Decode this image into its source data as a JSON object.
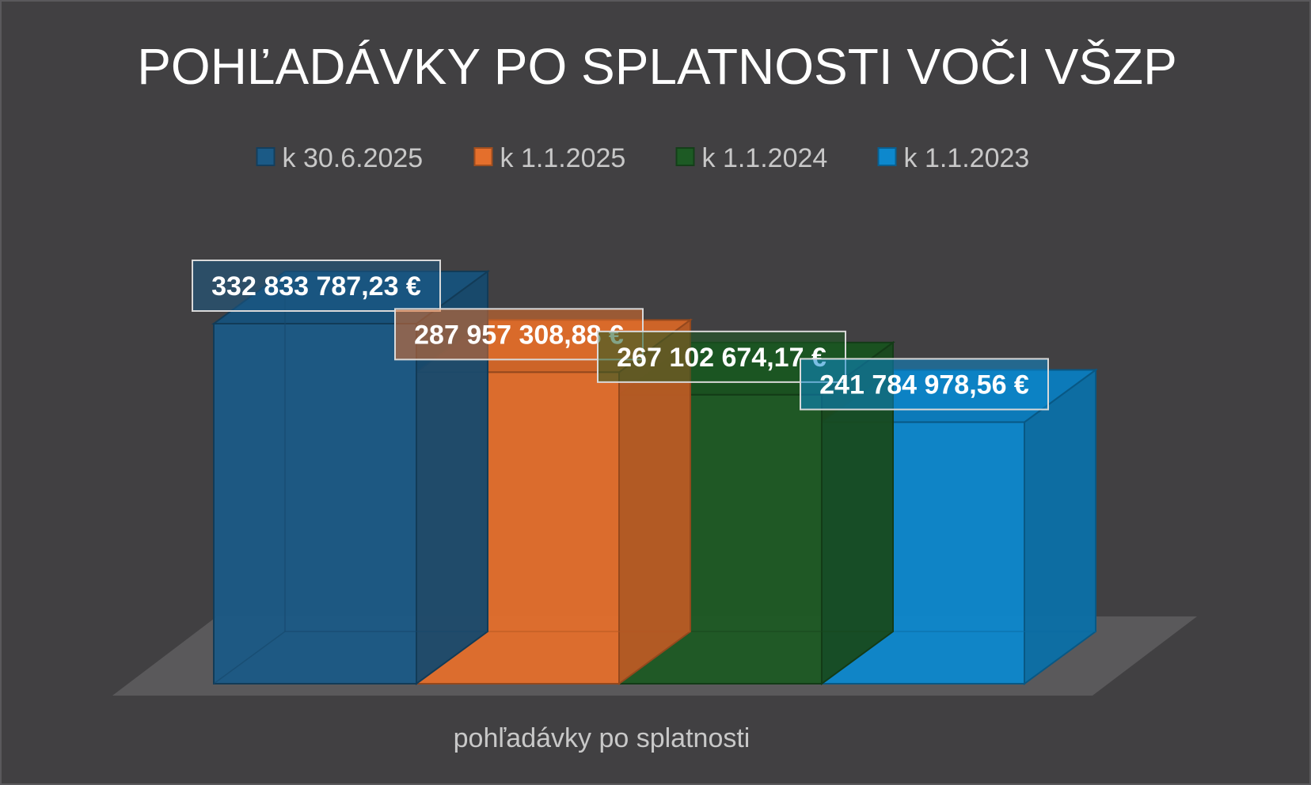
{
  "chart_data": {
    "type": "bar",
    "style": "3d-column",
    "title": "POHĽADÁVKY PO SPLATNOSTI VOČI VŠZP",
    "categories": [
      "pohľadávky po splatnosti"
    ],
    "legend_position": "top",
    "grid": false,
    "series": [
      {
        "name": "k 30.6.2025",
        "values": [
          332833787.23
        ],
        "label": "332 833 787,23 €",
        "color": "#1b5a86"
      },
      {
        "name": "k 1.1.2025",
        "values": [
          287957308.88
        ],
        "label": "287 957 308,88 €",
        "color": "#e46f2c"
      },
      {
        "name": "k 1.1.2024",
        "values": [
          267102674.17
        ],
        "label": "267 102 674,17 €",
        "color": "#1d5a24"
      },
      {
        "name": "k 1.1.2023",
        "values": [
          241784978.56
        ],
        "label": "241 784 978,56 €",
        "color": "#0d88cd"
      }
    ]
  }
}
